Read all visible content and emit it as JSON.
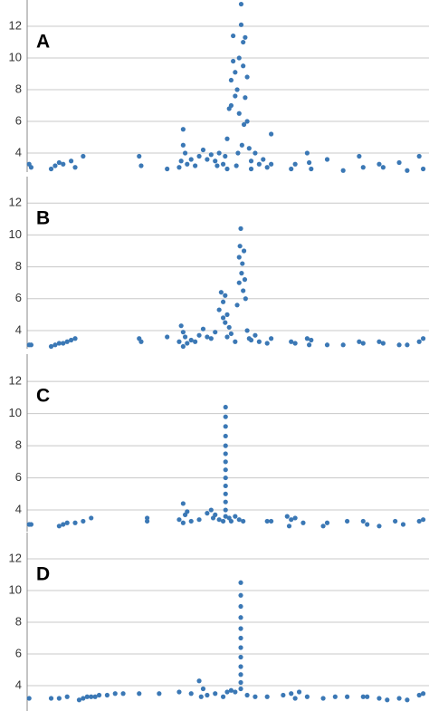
{
  "chart_data": [
    {
      "type": "scatter",
      "title": "A",
      "color": "#3b78b5",
      "grid": true,
      "xlim": [
        0,
        100
      ],
      "ylim": [
        2.8,
        13.66
      ],
      "yticks": [
        4,
        6,
        8,
        10,
        12
      ],
      "x": [
        0.5,
        1,
        6,
        7,
        8,
        9,
        11,
        12,
        14,
        28,
        28.5,
        35,
        38,
        38.5,
        39,
        39,
        39.5,
        40,
        41,
        42,
        43,
        44,
        45,
        46,
        47,
        47.5,
        48,
        49,
        49.5,
        50,
        50,
        50.5,
        51,
        51,
        51.5,
        51.5,
        52,
        52,
        52.5,
        53,
        53,
        53.5,
        53.5,
        54,
        54,
        54.5,
        54.5,
        55,
        55,
        55.5,
        56,
        56,
        57,
        58,
        59,
        60,
        61,
        61,
        66,
        67,
        70,
        70.5,
        71,
        75,
        79,
        83,
        84,
        88,
        89,
        93,
        95,
        98,
        99,
        52.3,
        53.7,
        54.2,
        52.7
      ],
      "values": [
        3.3,
        3.1,
        3.0,
        3.2,
        3.4,
        3.3,
        3.5,
        3.1,
        3.8,
        3.8,
        3.2,
        3.0,
        3.1,
        3.5,
        4.5,
        5.5,
        4.0,
        3.3,
        3.6,
        3.2,
        3.8,
        4.2,
        3.6,
        3.9,
        3.5,
        3.2,
        4.0,
        3.3,
        3.8,
        4.9,
        3.0,
        6.8,
        7.0,
        8.6,
        9.8,
        11.4,
        7.6,
        9.1,
        8.0,
        6.5,
        10.0,
        12.1,
        13.4,
        11.0,
        9.5,
        11.3,
        7.5,
        8.8,
        6.0,
        4.3,
        3.5,
        3.0,
        4.0,
        3.3,
        3.6,
        3.1,
        5.2,
        3.3,
        3.0,
        3.3,
        4.0,
        3.4,
        3.0,
        3.6,
        2.9,
        3.8,
        3.1,
        3.3,
        3.1,
        3.4,
        2.9,
        3.8,
        3.0,
        3.2,
        4.5,
        5.8,
        4.0
      ]
    },
    {
      "type": "scatter",
      "title": "B",
      "color": "#3b78b5",
      "grid": true,
      "xlim": [
        0,
        100
      ],
      "ylim": [
        2.86,
        13.66
      ],
      "yticks": [
        4,
        6,
        8,
        10,
        12
      ],
      "x": [
        0.5,
        1,
        6,
        7,
        8,
        9,
        10,
        11,
        12,
        28,
        28.5,
        35,
        38,
        38.5,
        39,
        39,
        39.5,
        40,
        41,
        42,
        43,
        44,
        45,
        46,
        47,
        48,
        48.5,
        49,
        49,
        49.5,
        49.5,
        50,
        50,
        50.5,
        51,
        52,
        52.5,
        53,
        53,
        53.2,
        53.4,
        53.6,
        53.8,
        54,
        54.2,
        54.4,
        54.6,
        55,
        55.5,
        56,
        57,
        58,
        60,
        61,
        66,
        67,
        70,
        70.5,
        71,
        75,
        79,
        83,
        84,
        88,
        89,
        93,
        95,
        98,
        99
      ],
      "values": [
        3.1,
        3.1,
        3.0,
        3.1,
        3.2,
        3.2,
        3.3,
        3.4,
        3.5,
        3.5,
        3.3,
        3.6,
        3.3,
        4.3,
        3.9,
        3.0,
        3.6,
        3.2,
        3.4,
        3.3,
        3.7,
        4.1,
        3.6,
        3.5,
        3.9,
        5.3,
        6.4,
        4.8,
        5.8,
        6.2,
        4.5,
        5.0,
        3.6,
        4.2,
        3.8,
        3.3,
        5.6,
        7.0,
        8.6,
        9.3,
        10.4,
        7.6,
        8.2,
        6.5,
        9.0,
        7.2,
        6.0,
        4.0,
        3.5,
        3.4,
        3.7,
        3.3,
        3.2,
        3.5,
        3.3,
        3.2,
        3.5,
        3.1,
        3.4,
        3.1,
        3.1,
        3.3,
        3.2,
        3.3,
        3.2,
        3.1,
        3.1,
        3.3,
        3.5
      ]
    },
    {
      "type": "scatter",
      "title": "C",
      "color": "#3b78b5",
      "grid": true,
      "xlim": [
        0,
        100
      ],
      "ylim": [
        2.65,
        13.7
      ],
      "yticks": [
        4,
        6,
        8,
        10,
        12
      ],
      "x": [
        0.5,
        1,
        8,
        9,
        10,
        12,
        14,
        16,
        30,
        30,
        38,
        39,
        39,
        39.5,
        40,
        41,
        43,
        45,
        46,
        46.5,
        47,
        48,
        49,
        49.6,
        49.6,
        49.6,
        49.6,
        49.6,
        49.6,
        49.6,
        49.6,
        49.6,
        49.6,
        49.6,
        49.6,
        49.6,
        49.6,
        50.5,
        51,
        52,
        53,
        54,
        60,
        61,
        65,
        65.5,
        66,
        67,
        69,
        74,
        75,
        80,
        84,
        85,
        88,
        92,
        94,
        98,
        99
      ],
      "values": [
        3.1,
        3.1,
        3.0,
        3.1,
        3.2,
        3.2,
        3.3,
        3.5,
        3.5,
        3.3,
        3.4,
        4.4,
        3.2,
        3.7,
        3.9,
        3.3,
        3.4,
        3.8,
        4.0,
        3.5,
        3.7,
        3.4,
        3.3,
        3.6,
        4.0,
        4.5,
        5.0,
        5.5,
        6.0,
        6.5,
        7.0,
        7.5,
        8.0,
        8.6,
        9.2,
        9.8,
        10.4,
        3.5,
        3.3,
        3.6,
        3.4,
        3.3,
        3.3,
        3.3,
        3.6,
        3.0,
        3.4,
        3.5,
        3.2,
        3.0,
        3.2,
        3.3,
        3.3,
        3.1,
        3.0,
        3.3,
        3.1,
        3.3,
        3.4
      ]
    },
    {
      "type": "scatter",
      "title": "D",
      "color": "#3b78b5",
      "grid": true,
      "xlim": [
        0,
        100
      ],
      "ylim": [
        2.4,
        13.66
      ],
      "yticks": [
        4,
        6,
        8,
        10,
        12
      ],
      "x": [
        0.5,
        6,
        8,
        10,
        13,
        14,
        15,
        16,
        17,
        18,
        20,
        22,
        24,
        28,
        33,
        38,
        41,
        43,
        43.5,
        44,
        45,
        47,
        49,
        50,
        51,
        52,
        53.4,
        53.4,
        53.4,
        53.4,
        53.4,
        53.4,
        53.4,
        53.4,
        53.4,
        53.4,
        53.4,
        53.4,
        55,
        57,
        60,
        64,
        66,
        67,
        68,
        70,
        74,
        77,
        80,
        84,
        85,
        88,
        90,
        93,
        95,
        98,
        99
      ],
      "values": [
        3.2,
        3.2,
        3.2,
        3.3,
        3.1,
        3.2,
        3.3,
        3.3,
        3.3,
        3.4,
        3.4,
        3.5,
        3.5,
        3.5,
        3.5,
        3.6,
        3.5,
        4.3,
        3.3,
        3.8,
        3.4,
        3.5,
        3.3,
        3.6,
        3.7,
        3.6,
        3.8,
        4.2,
        4.7,
        5.2,
        5.8,
        6.4,
        7.0,
        7.6,
        8.3,
        9.0,
        9.7,
        10.5,
        3.4,
        3.3,
        3.3,
        3.4,
        3.5,
        3.2,
        3.6,
        3.3,
        3.2,
        3.3,
        3.3,
        3.3,
        3.3,
        3.2,
        3.1,
        3.2,
        3.1,
        3.4,
        3.5
      ]
    }
  ]
}
